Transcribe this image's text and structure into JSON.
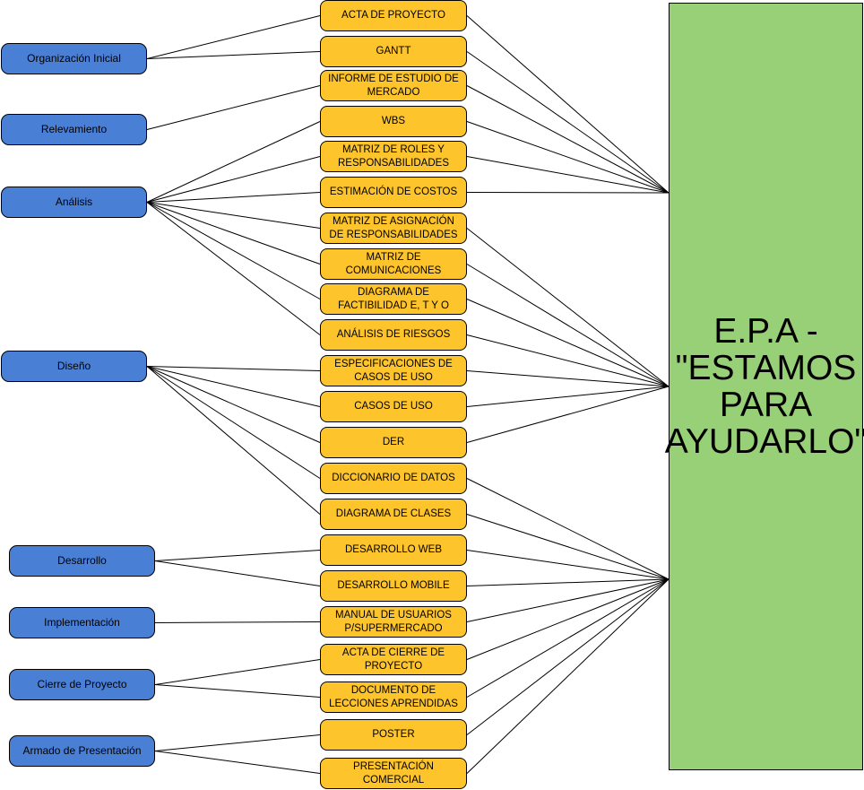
{
  "target": {
    "label": "E.P.A - \"ESTAMOS PARA AYUDARLO\""
  },
  "phases": [
    {
      "id": "p1",
      "label": "Organización Inicial"
    },
    {
      "id": "p2",
      "label": "Relevamiento"
    },
    {
      "id": "p3",
      "label": "Análisis"
    },
    {
      "id": "p4",
      "label": "Diseño"
    },
    {
      "id": "p5",
      "label": "Desarrollo"
    },
    {
      "id": "p6",
      "label": "Implementación"
    },
    {
      "id": "p7",
      "label": "Cierre de Proyecto"
    },
    {
      "id": "p8",
      "label": "Armado de Presentación"
    }
  ],
  "deliverables": [
    {
      "id": "d1",
      "label": "ACTA DE PROYECTO"
    },
    {
      "id": "d2",
      "label": "GANTT"
    },
    {
      "id": "d3",
      "label": "INFORME DE ESTUDIO DE MERCADO"
    },
    {
      "id": "d4",
      "label": "WBS"
    },
    {
      "id": "d5",
      "label": "MATRIZ DE ROLES Y RESPONSABILIDADES"
    },
    {
      "id": "d6",
      "label": "ESTIMACIÓN DE COSTOS"
    },
    {
      "id": "d7",
      "label": "MATRIZ DE ASIGNACIÓN DE RESPONSABILIDADES"
    },
    {
      "id": "d8",
      "label": "MATRIZ DE COMUNICACIONES"
    },
    {
      "id": "d9",
      "label": "DIAGRAMA DE FACTIBILIDAD E, T Y O"
    },
    {
      "id": "d10",
      "label": "ANÁLISIS DE RIESGOS"
    },
    {
      "id": "d11",
      "label": "ESPECIFICACIONES DE CASOS DE USO"
    },
    {
      "id": "d12",
      "label": "CASOS DE USO"
    },
    {
      "id": "d13",
      "label": "DER"
    },
    {
      "id": "d14",
      "label": "DICCIONARIO DE DATOS"
    },
    {
      "id": "d15",
      "label": "DIAGRAMA DE CLASES"
    },
    {
      "id": "d16",
      "label": "DESARROLLO WEB"
    },
    {
      "id": "d17",
      "label": "DESARROLLO MOBILE"
    },
    {
      "id": "d18",
      "label": "MANUAL DE USUARIOS P/SUPERMERCADO"
    },
    {
      "id": "d19",
      "label": "ACTA DE CIERRE DE PROYECTO"
    },
    {
      "id": "d20",
      "label": "DOCUMENTO DE LECCIONES APRENDIDAS"
    },
    {
      "id": "d21",
      "label": "POSTER"
    },
    {
      "id": "d22",
      "label": "PRESENTACIÓN COMERCIAL"
    }
  ],
  "phase_links": [
    [
      "p1",
      "d1"
    ],
    [
      "p1",
      "d2"
    ],
    [
      "p2",
      "d3"
    ],
    [
      "p3",
      "d4"
    ],
    [
      "p3",
      "d5"
    ],
    [
      "p3",
      "d6"
    ],
    [
      "p3",
      "d7"
    ],
    [
      "p3",
      "d8"
    ],
    [
      "p3",
      "d9"
    ],
    [
      "p3",
      "d10"
    ],
    [
      "p4",
      "d11"
    ],
    [
      "p4",
      "d12"
    ],
    [
      "p4",
      "d13"
    ],
    [
      "p4",
      "d14"
    ],
    [
      "p4",
      "d15"
    ],
    [
      "p5",
      "d16"
    ],
    [
      "p5",
      "d17"
    ],
    [
      "p6",
      "d18"
    ],
    [
      "p7",
      "d19"
    ],
    [
      "p7",
      "d20"
    ],
    [
      "p8",
      "d21"
    ],
    [
      "p8",
      "d22"
    ]
  ],
  "target_links": [
    "d1",
    "d2",
    "d3",
    "d4",
    "d5",
    "d6",
    "d7",
    "d8",
    "d9",
    "d10",
    "d11",
    "d12",
    "d13",
    "d14",
    "d15",
    "d16",
    "d17",
    "d18",
    "d19",
    "d20",
    "d21",
    "d22"
  ],
  "colors": {
    "phase_fill": "#4a7fd6",
    "deliverable_fill": "#fec42c",
    "target_fill": "#97d077",
    "line": "#000000"
  }
}
